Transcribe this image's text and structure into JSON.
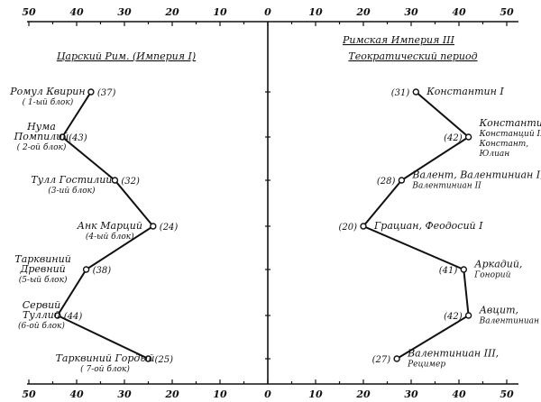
{
  "chart_data": {
    "type": "line",
    "x_ticks": [
      "50",
      "40",
      "30",
      "20",
      "10",
      "0",
      "10",
      "20",
      "30",
      "40",
      "50"
    ],
    "xlim": [
      -50,
      50
    ],
    "grid": false,
    "series": [
      {
        "title": "Царский Рим. (Империя I)",
        "side": "left",
        "points": [
          {
            "value": 37,
            "label": "(37)",
            "names": [
              "Ромул Квирин"
            ],
            "note": "( 1-ый блок)"
          },
          {
            "value": 43,
            "label": "(43)",
            "names": [
              "Нума",
              "Помпилий"
            ],
            "note": "( 2-ой блок)"
          },
          {
            "value": 32,
            "label": "(32)",
            "names": [
              "Тулл Гостилий"
            ],
            "note": "(3-ий блок)"
          },
          {
            "value": 24,
            "label": "(24)",
            "names": [
              "Анк Марций"
            ],
            "note": "(4-ый блок)"
          },
          {
            "value": 38,
            "label": "(38)",
            "names": [
              "Тарквиний",
              "Древний"
            ],
            "note": "(5-ый блок)"
          },
          {
            "value": 44,
            "label": "(44)",
            "names": [
              "Сервий",
              "Туллий"
            ],
            "note": "(6-ой блок)"
          },
          {
            "value": 25,
            "label": "(25)",
            "names": [
              "Тарквиний Гордый"
            ],
            "note": "( 7-ой блок)"
          }
        ]
      },
      {
        "title": "Римская Империя III",
        "subtitle": "Теократический период",
        "side": "right",
        "points": [
          {
            "value": 31,
            "label": "(31)",
            "names": [
              "Константин I"
            ]
          },
          {
            "value": 42,
            "label": "(42)",
            "names": [
              "Константин II,",
              "Констанций II,",
              "Констант,",
              "Юлиан"
            ]
          },
          {
            "value": 28,
            "label": "(28)",
            "names": [
              "Валент, Валентиниан I,",
              "Валентиниан II"
            ]
          },
          {
            "value": 20,
            "label": "(20)",
            "names": [
              "Грациан, Феодосий I"
            ]
          },
          {
            "value": 41,
            "label": "(41)",
            "names": [
              "Аркадий,",
              "Гонорий"
            ]
          },
          {
            "value": 42,
            "label": "(42)",
            "names": [
              "Авцит,",
              "Валентиниан III"
            ]
          },
          {
            "value": 27,
            "label": "(27)",
            "names": [
              "Валентиниан III,",
              "Рецимер"
            ]
          }
        ]
      }
    ]
  }
}
